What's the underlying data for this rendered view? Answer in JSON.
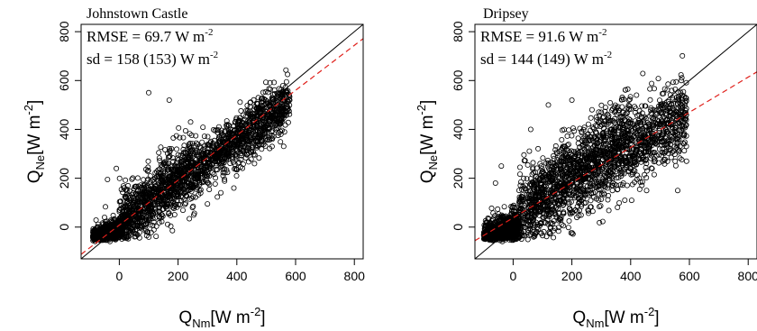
{
  "chart_data": [
    {
      "type": "scatter",
      "title": "Johnstown Castle",
      "annotations": {
        "rmse": {
          "label": "RMSE = 69.7 W m",
          "exp": "-2"
        },
        "sd": {
          "label": "sd = 158 (153) W m",
          "exp": "-2"
        }
      },
      "xlabel": {
        "main": "Q",
        "sub": "Nm",
        "unit": "[W m",
        "exp": "-2",
        "close": "]"
      },
      "ylabel": {
        "main": "Q",
        "sub": "Ne",
        "unit": "[W m",
        "exp": "-2",
        "close": "]"
      },
      "xlim": [
        -130,
        830
      ],
      "ylim": [
        -130,
        830
      ],
      "xticks": [
        "0",
        "200",
        "400",
        "600",
        "800"
      ],
      "yticks": [
        "0",
        "200",
        "400",
        "600",
        "800"
      ],
      "one_to_one_line": {
        "slope": 1,
        "intercept": 0,
        "color": "#000000",
        "style": "solid"
      },
      "regression_line": {
        "slope": 0.92,
        "intercept": 8,
        "color": "#e0201b",
        "style": "dashed"
      },
      "marker": "open-circle",
      "point_clusters": [
        {
          "x_range": [
            -90,
            10
          ],
          "slope": 0.55,
          "intercept": -10,
          "spread": 25,
          "count": 900
        },
        {
          "x_range": [
            10,
            580
          ],
          "slope": 0.88,
          "intercept": 5,
          "spread": 55,
          "count": 1700
        },
        {
          "x_range": [
            0,
            250
          ],
          "slope": 1.05,
          "intercept": 40,
          "spread": 60,
          "count": 300
        }
      ],
      "outliers": [
        [
          -40,
          195
        ],
        [
          -10,
          240
        ],
        [
          100,
          550
        ],
        [
          170,
          520
        ],
        [
          300,
          95
        ],
        [
          390,
          160
        ],
        [
          460,
          260
        ],
        [
          520,
          330
        ],
        [
          550,
          380
        ],
        [
          580,
          520
        ]
      ]
    },
    {
      "type": "scatter",
      "title": "Dripsey",
      "annotations": {
        "rmse": {
          "label": "RMSE = 91.6 W m",
          "exp": "-2"
        },
        "sd": {
          "label": "sd = 144 (149) W m",
          "exp": "-2"
        }
      },
      "xlabel": {
        "main": "Q",
        "sub": "Nm",
        "unit": "[W m",
        "exp": "-2",
        "close": "]"
      },
      "ylabel": {
        "main": "Q",
        "sub": "Ne",
        "unit": "[W m",
        "exp": "-2",
        "close": "]"
      },
      "xlim": [
        -130,
        830
      ],
      "ylim": [
        -130,
        830
      ],
      "xticks": [
        "0",
        "200",
        "400",
        "600",
        "800"
      ],
      "yticks": [
        "0",
        "200",
        "400",
        "600",
        "800"
      ],
      "one_to_one_line": {
        "slope": 1,
        "intercept": 0,
        "color": "#000000",
        "style": "solid"
      },
      "regression_line": {
        "slope": 0.72,
        "intercept": 38,
        "color": "#e0201b",
        "style": "dashed"
      },
      "marker": "open-circle",
      "point_clusters": [
        {
          "x_range": [
            -100,
            20
          ],
          "slope": 0.45,
          "intercept": -5,
          "spread": 35,
          "count": 900
        },
        {
          "x_range": [
            20,
            590
          ],
          "slope": 0.72,
          "intercept": 40,
          "spread": 80,
          "count": 1700
        },
        {
          "x_range": [
            60,
            400
          ],
          "slope": 1.05,
          "intercept": 60,
          "spread": 70,
          "count": 300
        }
      ],
      "outliers": [
        [
          -60,
          180
        ],
        [
          -40,
          250
        ],
        [
          60,
          400
        ],
        [
          120,
          500
        ],
        [
          200,
          520
        ],
        [
          300,
          470
        ],
        [
          420,
          540
        ],
        [
          520,
          500
        ],
        [
          560,
          150
        ],
        [
          590,
          270
        ],
        [
          380,
          110
        ]
      ]
    }
  ]
}
